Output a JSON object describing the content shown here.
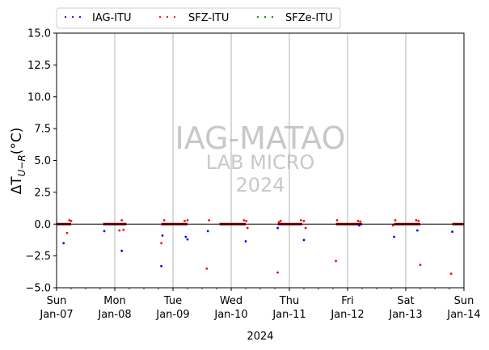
{
  "chart_data": {
    "type": "scatter",
    "xlabel": "2024",
    "ylabel": "ΔT",
    "ylabel_sub": "U−R",
    "ylabel_unit": "(°C)",
    "ylim": [
      -5.0,
      15.0
    ],
    "xlim": [
      "2024-01-07",
      "2024-01-14"
    ],
    "yticks": [
      "−5.0",
      "−2.5",
      "0.0",
      "2.5",
      "5.0",
      "7.5",
      "10.0",
      "12.5",
      "15.0"
    ],
    "ytick_values": [
      -5.0,
      -2.5,
      0.0,
      2.5,
      5.0,
      7.5,
      10.0,
      12.5,
      15.0
    ],
    "xticks": [
      {
        "day": "Sun",
        "date": "Jan-07",
        "value": 0
      },
      {
        "day": "Mon",
        "date": "Jan-08",
        "value": 1
      },
      {
        "day": "Tue",
        "date": "Jan-09",
        "value": 2
      },
      {
        "day": "Wed",
        "date": "Jan-10",
        "value": 3
      },
      {
        "day": "Thu",
        "date": "Jan-11",
        "value": 4
      },
      {
        "day": "Fri",
        "date": "Jan-12",
        "value": 5
      },
      {
        "day": "Sat",
        "date": "Jan-13",
        "value": 6
      },
      {
        "day": "Sun",
        "date": "Jan-14",
        "value": 7
      }
    ],
    "grid": "vertical at day boundaries",
    "legend_position": "top, above plot",
    "watermark": [
      "IAG-MATAO",
      "LAB MICRO",
      "2024"
    ],
    "series": [
      {
        "name": "IAG-ITU",
        "color": "#0000ff",
        "points": [
          [
            0.12,
            -1.5
          ],
          [
            0.82,
            -0.55
          ],
          [
            1.12,
            -2.1
          ],
          [
            1.8,
            -3.3
          ],
          [
            1.82,
            -0.9
          ],
          [
            2.22,
            -1.0
          ],
          [
            2.25,
            -1.2
          ],
          [
            2.6,
            -0.55
          ],
          [
            3.25,
            -1.35
          ],
          [
            3.8,
            -0.3
          ],
          [
            4.25,
            -1.25
          ],
          [
            5.2,
            -0.1
          ],
          [
            5.8,
            -1.0
          ],
          [
            6.2,
            -0.5
          ],
          [
            6.8,
            -0.6
          ]
        ]
      },
      {
        "name": "SFZ-ITU",
        "color": "#ff0000",
        "points": [
          [
            0.18,
            -0.7
          ],
          [
            0.22,
            0.3
          ],
          [
            0.25,
            0.25
          ],
          [
            1.08,
            -0.5
          ],
          [
            1.12,
            0.3
          ],
          [
            1.15,
            -0.45
          ],
          [
            1.8,
            -1.5
          ],
          [
            1.85,
            0.3
          ],
          [
            2.2,
            0.25
          ],
          [
            2.25,
            0.3
          ],
          [
            2.58,
            -3.5
          ],
          [
            2.62,
            0.3
          ],
          [
            3.22,
            0.3
          ],
          [
            3.26,
            0.25
          ],
          [
            3.28,
            -0.3
          ],
          [
            3.8,
            -3.8
          ],
          [
            3.82,
            0.15
          ],
          [
            3.85,
            0.25
          ],
          [
            4.2,
            0.3
          ],
          [
            4.25,
            0.25
          ],
          [
            4.28,
            -0.3
          ],
          [
            4.8,
            -2.9
          ],
          [
            4.82,
            0.3
          ],
          [
            5.18,
            0.25
          ],
          [
            5.22,
            0.2
          ],
          [
            5.78,
            -0.1
          ],
          [
            5.82,
            0.3
          ],
          [
            6.18,
            0.3
          ],
          [
            6.22,
            0.25
          ],
          [
            6.25,
            -3.2
          ],
          [
            6.78,
            -3.9
          ]
        ]
      },
      {
        "name": "SFZe-ITU",
        "color": "#008000",
        "points": []
      }
    ],
    "runs": [
      {
        "start": 0.0,
        "end": 0.25,
        "y": 0.0
      },
      {
        "start": 0.8,
        "end": 1.2,
        "y": 0.0
      },
      {
        "start": 1.8,
        "end": 2.25,
        "y": 0.0
      },
      {
        "start": 2.8,
        "end": 3.25,
        "y": 0.0
      },
      {
        "start": 3.8,
        "end": 4.22,
        "y": 0.0
      },
      {
        "start": 4.8,
        "end": 5.25,
        "y": 0.0
      },
      {
        "start": 5.8,
        "end": 6.25,
        "y": 0.0
      },
      {
        "start": 6.8,
        "end": 7.0,
        "y": 0.0
      }
    ]
  }
}
